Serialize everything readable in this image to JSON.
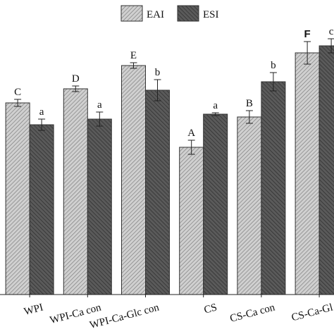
{
  "chart_data": {
    "type": "bar",
    "categories": [
      "WPI",
      "WPI-Ca con",
      "WPI-Ca-Glc con",
      "CS",
      "CS-Ca con",
      "CS-Ca-Gl"
    ],
    "series": [
      {
        "name": "EAI",
        "color": "#d0d0d0",
        "values": [
          272,
          292,
          325,
          209,
          252,
          343
        ],
        "errors": [
          5,
          4,
          4,
          10,
          9,
          16
        ],
        "letters": [
          "C",
          "D",
          "E",
          "A",
          "B",
          "F"
        ]
      },
      {
        "name": "ESI",
        "color": "#5a5a5a",
        "values": [
          241,
          249,
          290,
          256,
          302,
          353
        ],
        "errors": [
          8,
          10,
          15,
          2,
          13,
          10
        ],
        "letters": [
          "a",
          "a",
          "b",
          "a",
          "b",
          "c"
        ]
      }
    ],
    "ylim": [
      0,
      400
    ]
  }
}
